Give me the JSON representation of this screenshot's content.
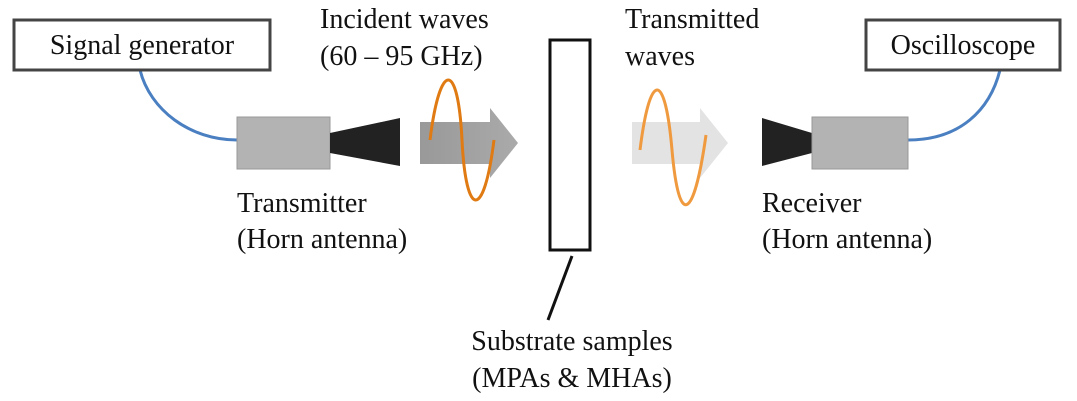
{
  "boxes": {
    "signal_generator": "Signal generator",
    "oscilloscope": "Oscilloscope"
  },
  "labels": {
    "incident": [
      "Incident waves",
      "(60 – 95 GHz)"
    ],
    "transmitted": [
      "Transmitted",
      "waves"
    ],
    "transmitter": [
      "Transmitter",
      "(Horn antenna)"
    ],
    "receiver": [
      "Receiver",
      "(Horn antenna)"
    ],
    "substrate": [
      "Substrate samples",
      "(MPAs & MHAs)"
    ]
  }
}
